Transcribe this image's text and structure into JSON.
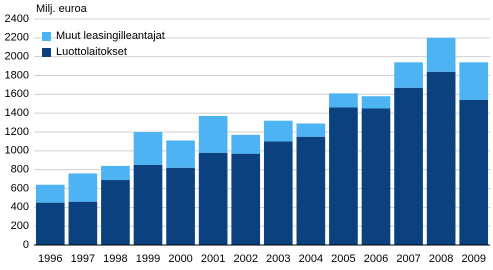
{
  "chart_data": {
    "type": "stacked_bar",
    "y_label": "Milj. euroa",
    "categories": [
      "1996",
      "1997",
      "1998",
      "1999",
      "2000",
      "2001",
      "2002",
      "2003",
      "2004",
      "2005",
      "2006",
      "2007",
      "2008",
      "2009"
    ],
    "series": [
      {
        "name": "Luottolaitokset",
        "color": "#0b417f",
        "values": [
          450,
          460,
          690,
          850,
          820,
          980,
          970,
          1100,
          1150,
          1460,
          1450,
          1670,
          1840,
          1540
        ]
      },
      {
        "name": "Muut leasingilleantajat",
        "color": "#4db3f2",
        "values": [
          190,
          300,
          150,
          350,
          290,
          390,
          200,
          220,
          140,
          150,
          130,
          270,
          360,
          400
        ]
      }
    ],
    "ylim": [
      0,
      2400
    ],
    "yticks": [
      0,
      200,
      400,
      600,
      800,
      1000,
      1200,
      1400,
      1600,
      1800,
      2000,
      2200,
      2400
    ],
    "grid": true,
    "legend": "top-left"
  }
}
